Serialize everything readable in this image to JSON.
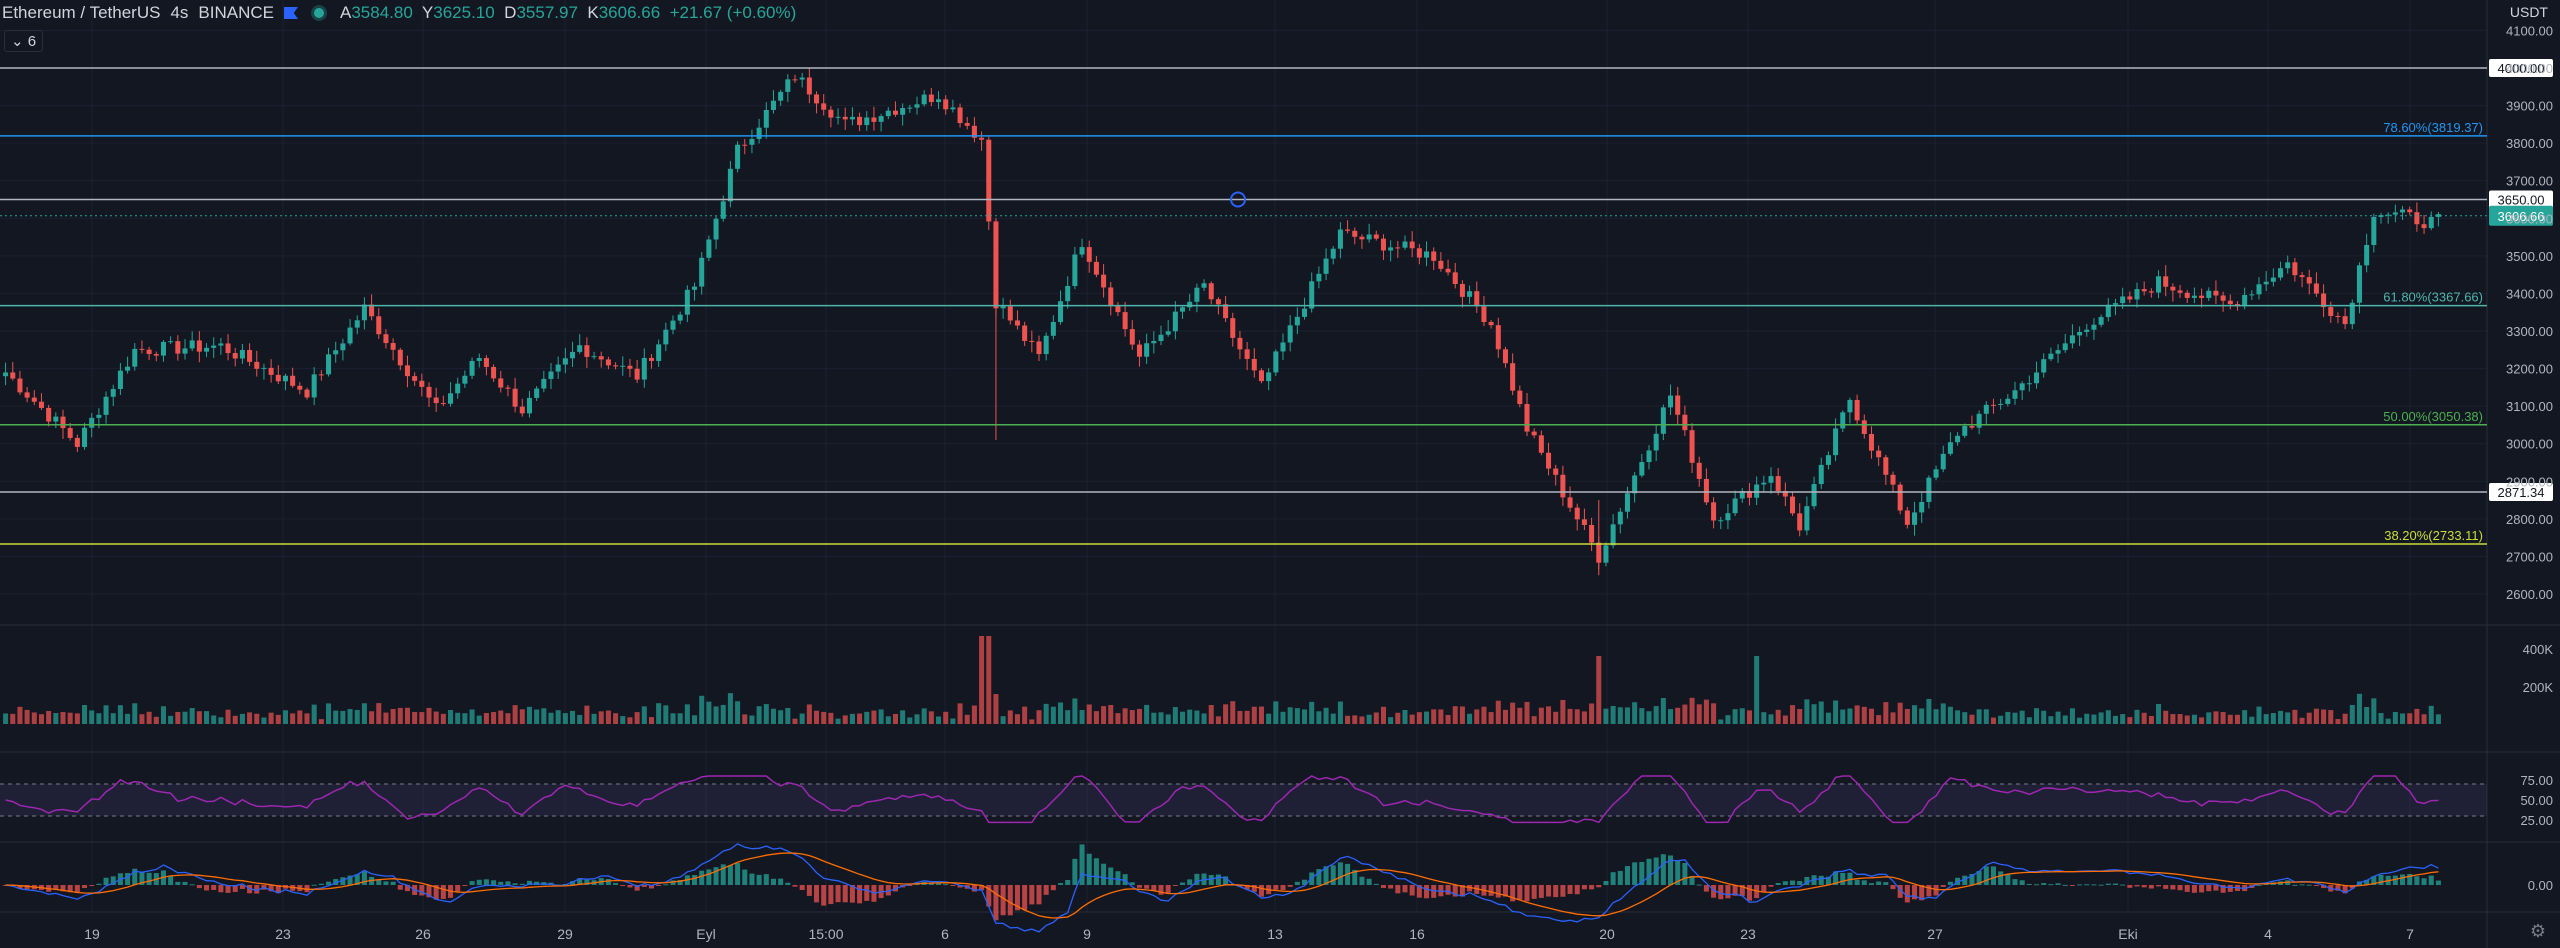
{
  "header": {
    "symbol": "Ethereum / TetherUS",
    "interval": "4s",
    "exchange": "BINANCE",
    "ohlc": [
      {
        "k": "A",
        "v": "3584.80"
      },
      {
        "k": "Y",
        "v": "3625.10"
      },
      {
        "k": "D",
        "v": "3557.97"
      },
      {
        "k": "K",
        "v": "3606.66"
      },
      {
        "k": "",
        "v": "+21.67 (+0.60%)"
      }
    ],
    "collapse_label": "6",
    "currency": "USDT"
  },
  "colors": {
    "background": "#131722",
    "up": "#26a69a",
    "down": "#ef5350",
    "rsi": "#9c27b0",
    "macd": "#2962ff",
    "signal": "#ff6d00"
  },
  "chart_data": {
    "type": "candlestick",
    "price_axis": {
      "min": 2600,
      "max": 4100,
      "ticks": [
        "4100.00",
        "4000.00",
        "3900.00",
        "3800.00",
        "3700.00",
        "3600.00",
        "3500.00",
        "3400.00",
        "3300.00",
        "3200.00",
        "3100.00",
        "3000.00",
        "2900.00",
        "2800.00",
        "2700.00",
        "2600.00"
      ]
    },
    "x_labels": [
      "19",
      "23",
      "26",
      "29",
      "Eyl",
      "15:00",
      "6",
      "9",
      "13",
      "16",
      "20",
      "23",
      "27",
      "Eki",
      "4",
      "7"
    ],
    "horizontal_lines": [
      {
        "value": 4000,
        "label": "4000.00",
        "color": "#b2b5be"
      },
      {
        "value": 3650,
        "label": "3650.00",
        "color": "#b2b5be"
      },
      {
        "value": 2871.34,
        "label": "2871.34",
        "color": "#b2b5be"
      }
    ],
    "fib_levels": [
      {
        "value": 3819.37,
        "label": "78.60%(3819.37)",
        "color": "#2196f3"
      },
      {
        "value": 3367.66,
        "label": "61.80%(3367.66)",
        "color": "#4db6ac"
      },
      {
        "value": 3050.38,
        "label": "50.00%(3050.38)",
        "color": "#4caf50"
      },
      {
        "value": 2733.11,
        "label": "38.20%(2733.11)",
        "color": "#cddc39"
      }
    ],
    "last_price": {
      "value": 3606.66,
      "label": "3606.66"
    },
    "anchors": [
      [
        0,
        3190
      ],
      [
        10,
        3000
      ],
      [
        18,
        3250
      ],
      [
        30,
        3260
      ],
      [
        42,
        3140
      ],
      [
        50,
        3360
      ],
      [
        60,
        3090
      ],
      [
        66,
        3230
      ],
      [
        72,
        3090
      ],
      [
        80,
        3260
      ],
      [
        88,
        3180
      ],
      [
        96,
        3420
      ],
      [
        102,
        3780
      ],
      [
        110,
        3980
      ],
      [
        117,
        3850
      ],
      [
        130,
        3930
      ],
      [
        136,
        3810
      ],
      [
        138,
        3380
      ],
      [
        144,
        3230
      ],
      [
        150,
        3540
      ],
      [
        158,
        3230
      ],
      [
        167,
        3420
      ],
      [
        175,
        3150
      ],
      [
        180,
        3340
      ],
      [
        186,
        3560
      ],
      [
        199,
        3500
      ],
      [
        207,
        3320
      ],
      [
        212,
        3040
      ],
      [
        222,
        2700
      ],
      [
        232,
        3130
      ],
      [
        238,
        2800
      ],
      [
        246,
        2920
      ],
      [
        250,
        2780
      ],
      [
        257,
        3120
      ],
      [
        265,
        2790
      ],
      [
        272,
        3030
      ],
      [
        280,
        3140
      ],
      [
        290,
        3320
      ],
      [
        300,
        3430
      ],
      [
        310,
        3370
      ],
      [
        318,
        3480
      ],
      [
        326,
        3320
      ],
      [
        330,
        3620
      ],
      [
        338,
        3590
      ]
    ],
    "volume_axis": {
      "ticks": [
        "400K",
        "200K"
      ]
    },
    "rsi": {
      "levels": [
        70,
        30
      ],
      "ticks": [
        "75.00",
        "50.00",
        "25.00"
      ]
    },
    "macd": {
      "ticks": [
        "0.00"
      ]
    }
  }
}
